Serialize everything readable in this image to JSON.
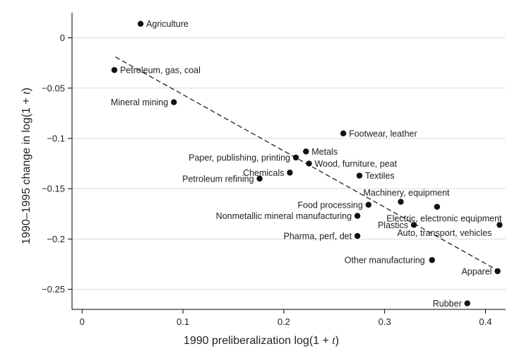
{
  "chart_data": {
    "type": "scatter",
    "xlabel": {
      "prefix": "1990 preliberalization log(1 + ",
      "var": "t",
      "suffix": ")"
    },
    "ylabel": {
      "prefix": "1990–1995 change in log(1 + ",
      "var": "t",
      "suffix": ")"
    },
    "xlim": [
      -0.01,
      0.42
    ],
    "ylim": [
      -0.27,
      0.025
    ],
    "x_ticks": [
      0,
      0.1,
      0.2,
      0.3,
      0.4
    ],
    "x_tick_labels": [
      "0",
      "0.1",
      "0.2",
      "0.3",
      "0.4"
    ],
    "y_ticks": [
      0,
      -0.05,
      -0.1,
      -0.15,
      -0.2,
      -0.25
    ],
    "y_tick_labels": [
      "0",
      "−0.05",
      "−0.1",
      "−0.15",
      "−0.2",
      "−0.25"
    ],
    "grid": "horizontal",
    "fit_line": {
      "style": "dashed",
      "x": [
        0.033,
        0.41
      ],
      "y": [
        -0.019,
        -0.23
      ]
    },
    "points": [
      {
        "label": "Agriculture",
        "x": 0.058,
        "y": 0.014,
        "anchor": "start",
        "dx": 8,
        "dy": 0
      },
      {
        "label": "Petroleum, gas, coal",
        "x": 0.032,
        "y": -0.032,
        "anchor": "start",
        "dx": 8,
        "dy": 0
      },
      {
        "label": "Mineral mining",
        "x": 0.091,
        "y": -0.064,
        "anchor": "end",
        "dx": -8,
        "dy": 0
      },
      {
        "label": "Footwear, leather",
        "x": 0.259,
        "y": -0.095,
        "anchor": "start",
        "dx": 8,
        "dy": 0
      },
      {
        "label": "Metals",
        "x": 0.222,
        "y": -0.113,
        "anchor": "start",
        "dx": 8,
        "dy": 0
      },
      {
        "label": "Paper, publishing, printing",
        "x": 0.212,
        "y": -0.119,
        "anchor": "end",
        "dx": -8,
        "dy": 0
      },
      {
        "label": "Wood, furniture, peat",
        "x": 0.225,
        "y": -0.125,
        "anchor": "start",
        "dx": 8,
        "dy": 0
      },
      {
        "label": "Chemicals",
        "x": 0.206,
        "y": -0.134,
        "anchor": "end",
        "dx": -8,
        "dy": 0
      },
      {
        "label": "Textiles",
        "x": 0.275,
        "y": -0.137,
        "anchor": "start",
        "dx": 8,
        "dy": 0
      },
      {
        "label": "Petroleum refining",
        "x": 0.176,
        "y": -0.14,
        "anchor": "end",
        "dx": -8,
        "dy": 0
      },
      {
        "label": "Machinery, equipment",
        "x": 0.316,
        "y": -0.163,
        "anchor": "middle",
        "dx": 8,
        "dy": -13
      },
      {
        "label": "Food processing",
        "x": 0.284,
        "y": -0.166,
        "anchor": "end",
        "dx": -8,
        "dy": 0
      },
      {
        "label": "Electric, electronic equipment",
        "x": 0.352,
        "y": -0.168,
        "anchor": "middle",
        "dx": 10,
        "dy": 16
      },
      {
        "label": "Nonmetallic mineral manufacturing",
        "x": 0.273,
        "y": -0.177,
        "anchor": "end",
        "dx": -8,
        "dy": 0
      },
      {
        "label": "Plastics",
        "x": 0.329,
        "y": -0.186,
        "anchor": "end",
        "dx": -8,
        "dy": 0
      },
      {
        "label": "Auto, transport, vehicles",
        "x": 0.414,
        "y": -0.186,
        "anchor": "end",
        "dx": -11,
        "dy": 11
      },
      {
        "label": "Pharma, perf, det",
        "x": 0.273,
        "y": -0.197,
        "anchor": "end",
        "dx": -8,
        "dy": 0
      },
      {
        "label": "Other manufacturing",
        "x": 0.347,
        "y": -0.221,
        "anchor": "end",
        "dx": -10,
        "dy": 0
      },
      {
        "label": "Apparel",
        "x": 0.412,
        "y": -0.232,
        "anchor": "end",
        "dx": -8,
        "dy": 0
      },
      {
        "label": "Rubber",
        "x": 0.382,
        "y": -0.264,
        "anchor": "end",
        "dx": -8,
        "dy": 0
      }
    ]
  }
}
